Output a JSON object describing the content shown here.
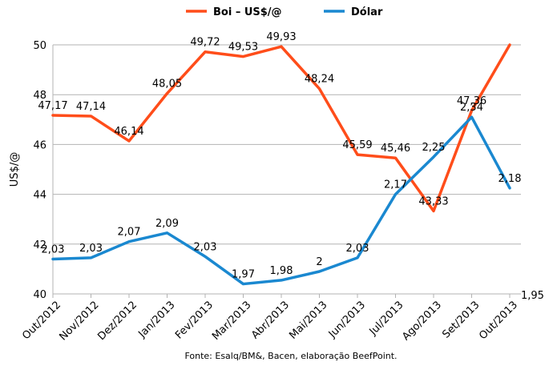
{
  "chart_data": {
    "type": "line",
    "categories": [
      "Out/2012",
      "Nov/2012",
      "Dez/2012",
      "Jan/2013",
      "Fev/2013",
      "Mar/2013",
      "Abr/2013",
      "Mai/2013",
      "Jun/2013",
      "Jul/2013",
      "Ago/2013",
      "Set/2013",
      "Out/2013"
    ],
    "ylabel": "US$/@",
    "ylim": [
      40,
      50
    ],
    "yticks": [
      "40",
      "42",
      "44",
      "46",
      "48",
      "50"
    ],
    "grid": true,
    "legend_position": "top",
    "source": "Fonte: Esalq/BM&, Bacen, elaboração BeefPoint.",
    "series": [
      {
        "name": "Boi – US$/@",
        "color": "#ff4d1a",
        "values": [
          47.17,
          47.14,
          46.14,
          48.05,
          49.72,
          49.53,
          49.93,
          48.24,
          45.59,
          45.46,
          43.33,
          47.36,
          50.0
        ],
        "labels": [
          "47,17",
          "47,14",
          "46,14",
          "48,05",
          "49,72",
          "49,53",
          "49,93",
          "48,24",
          "45,59",
          "45,46",
          "43,33",
          "47,36",
          ""
        ]
      },
      {
        "name": "Dólar",
        "color": "#1a88d0",
        "values": [
          41.4,
          41.45,
          42.1,
          42.45,
          41.5,
          40.4,
          40.55,
          40.9,
          41.45,
          44.0,
          45.5,
          47.1,
          44.25
        ],
        "labels": [
          "2,03",
          "2,03",
          "2,07",
          "2,09",
          "2,03",
          "1,97",
          "1,98",
          "2",
          "2,03",
          "2,17",
          "2,25",
          "2,34",
          "2,18"
        ]
      }
    ],
    "extra_label": "1,95"
  }
}
